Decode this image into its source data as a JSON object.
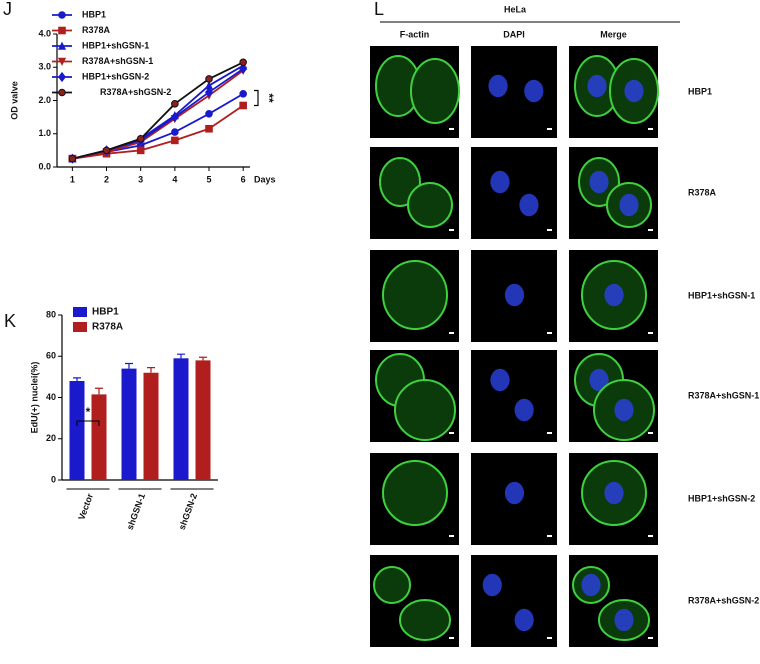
{
  "chart_data": [
    {
      "type": "line",
      "panel_label": "J",
      "xlabel": "Days",
      "ylabel": "OD valve",
      "x": [
        1,
        2,
        3,
        4,
        5,
        6
      ],
      "xlim": [
        0.55,
        6.2
      ],
      "xticks": [
        1,
        2,
        3,
        4,
        5,
        6
      ],
      "ylim": [
        0,
        4
      ],
      "yticks": [
        {
          "value": 0,
          "label": "0.0"
        },
        {
          "value": 1,
          "label": "1.0"
        },
        {
          "value": 2,
          "label": "2.0"
        },
        {
          "value": 3,
          "label": "3.0"
        },
        {
          "value": 4,
          "label": "4.0"
        }
      ],
      "series": [
        {
          "name": "HBP1",
          "color": "#1a1acc",
          "marker": "circle",
          "values": [
            0.25,
            0.45,
            0.65,
            1.05,
            1.6,
            2.2
          ]
        },
        {
          "name": "R378A",
          "color": "#b01e1e",
          "marker": "square",
          "values": [
            0.25,
            0.4,
            0.5,
            0.8,
            1.15,
            1.85
          ]
        },
        {
          "name": "HBP1+shGSN-1",
          "color": "#1a1acc",
          "marker": "triangle",
          "values": [
            0.25,
            0.5,
            0.85,
            1.55,
            2.45,
            3.05
          ]
        },
        {
          "name": "R378A+shGSN-1",
          "color": "#b01e1e",
          "marker": "triangle-down",
          "values": [
            0.25,
            0.45,
            0.75,
            1.45,
            2.15,
            2.9
          ]
        },
        {
          "name": "HBP1+shGSN-2",
          "color": "#1a1acc",
          "marker": "diamond",
          "values": [
            0.25,
            0.5,
            0.8,
            1.5,
            2.25,
            2.95
          ]
        },
        {
          "name": "R378A+shGSN-2",
          "color": "#111111",
          "marker": "circle",
          "marker_fill": "#8b2020",
          "values": [
            0.25,
            0.5,
            0.85,
            1.9,
            2.65,
            3.15
          ]
        }
      ],
      "annotations": [
        {
          "text": "**",
          "from": 1.85,
          "to": 2.3
        }
      ]
    },
    {
      "type": "bar",
      "panel_label": "K",
      "ylabel": "EdU(+) nuclei(%)",
      "categories": [
        "Vector",
        "shGSN-1",
        "shGSN-2"
      ],
      "ylim": [
        0,
        80
      ],
      "yticks": [
        0,
        20,
        40,
        60,
        80
      ],
      "series": [
        {
          "name": "HBP1",
          "color": "#1a1acc",
          "values": [
            48,
            54,
            59
          ],
          "errors": [
            1.5,
            2.5,
            2
          ]
        },
        {
          "name": "R378A",
          "color": "#b01e1e",
          "values": [
            41.5,
            52,
            58
          ],
          "errors": [
            3,
            2.5,
            1.5
          ]
        }
      ],
      "annotations": [
        {
          "text": "*",
          "category": 0
        }
      ]
    }
  ],
  "microscopy": {
    "panel_label": "L",
    "title": "HeLa",
    "columns": [
      "F-actin",
      "DAPI",
      "Merge"
    ],
    "rows": [
      "HBP1",
      "R378A",
      "HBP1+shGSN-1",
      "R378A+shGSN-1",
      "HBP1+shGSN-2",
      "R378A+shGSN-2"
    ]
  }
}
